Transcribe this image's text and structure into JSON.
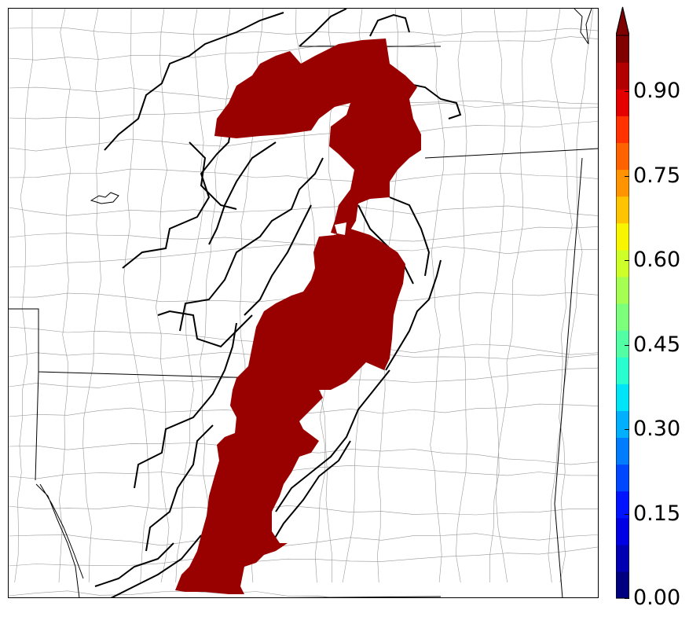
{
  "map": {
    "fill_color": "#990000",
    "track_color": "#000000",
    "county_line_color": "#999999",
    "state_line_color": "#000000"
  },
  "colorbar": {
    "palette": [
      "#00007f",
      "#0000b2",
      "#0000e5",
      "#0014ff",
      "#0048ff",
      "#007cff",
      "#00b0ff",
      "#00e4f8",
      "#29ffce",
      "#52ffa5",
      "#7cff7b",
      "#a5ff52",
      "#ceff29",
      "#f8f500",
      "#ffc400",
      "#ff9300",
      "#ff6300",
      "#ff3200",
      "#e50000",
      "#b20000",
      "#7f0000"
    ],
    "extend_color": "#7f0000",
    "tick_labels": [
      "0.00",
      "0.15",
      "0.30",
      "0.45",
      "0.60",
      "0.75",
      "0.90"
    ]
  }
}
